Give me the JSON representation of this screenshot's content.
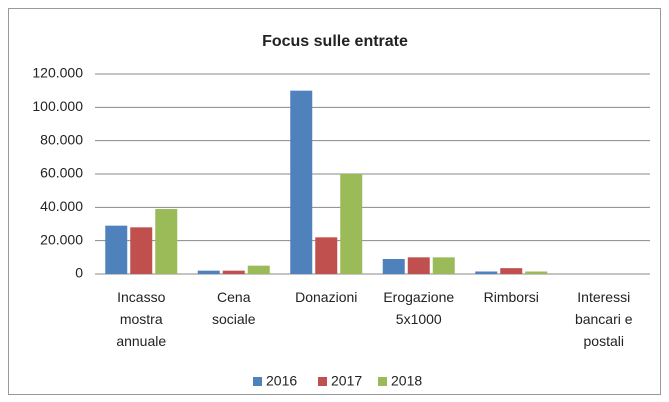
{
  "chart_data": {
    "type": "bar",
    "title": "Focus sulle entrate",
    "categories": [
      "Incasso mostra annuale",
      "Cena sociale",
      "Donazioni",
      "Erogazione 5x1000",
      "Rimborsi",
      "Interessi bancari e postali"
    ],
    "series": [
      {
        "name": "2016",
        "color": "#4f81bd",
        "values": [
          29000,
          2000,
          110000,
          9000,
          1500,
          0
        ]
      },
      {
        "name": "2017",
        "color": "#c0504d",
        "values": [
          28000,
          2000,
          22000,
          10000,
          3500,
          0
        ]
      },
      {
        "name": "2018",
        "color": "#9bbb59",
        "values": [
          39000,
          5000,
          60000,
          10000,
          1500,
          0
        ]
      }
    ],
    "ylim": [
      0,
      120000
    ],
    "yticks": [
      {
        "value": 0,
        "label": "0"
      },
      {
        "value": 20000,
        "label": "20.000"
      },
      {
        "value": 40000,
        "label": "40.000"
      },
      {
        "value": 60000,
        "label": "60.000"
      },
      {
        "value": 80000,
        "label": "80.000"
      },
      {
        "value": 100000,
        "label": "100.000"
      },
      {
        "value": 120000,
        "label": "120.000"
      }
    ],
    "grid": true,
    "legend": "bottom"
  }
}
